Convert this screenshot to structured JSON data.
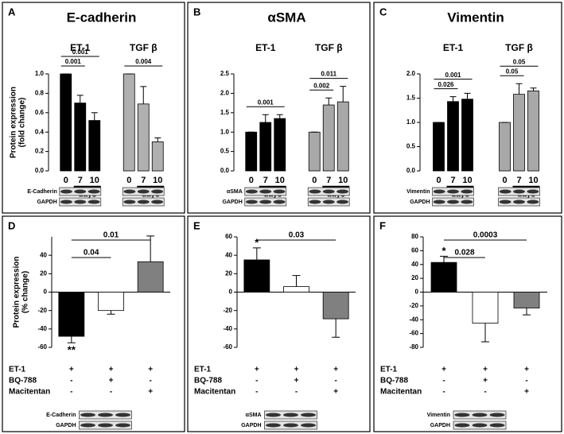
{
  "chart_data": [
    {
      "panel": "A",
      "type": "grouped-bar",
      "title": "E-cadherin",
      "y_label": [
        "Protein expression",
        "(fold change)"
      ],
      "ylim": [
        0,
        1
      ],
      "yticks": [
        {
          "value": 0,
          "label": "0.0"
        },
        0.2,
        0.4,
        0.6,
        0.8,
        {
          "value": 1,
          "label": "1.0"
        }
      ],
      "x_label": "days",
      "categories": [
        "0",
        "7",
        "10"
      ],
      "series": [
        {
          "name": "ET-1",
          "color": "#000000",
          "values": [
            1,
            0.7,
            0.52
          ],
          "errors": [
            0,
            0.08,
            0.08
          ]
        },
        {
          "name": "TGF β",
          "color": "#b0b0b0",
          "values": [
            1,
            0.69,
            0.3
          ],
          "errors": [
            0,
            0.18,
            0.04
          ]
        }
      ],
      "brackets": [
        {
          "label": "0.001",
          "series": 0,
          "from": 0,
          "to": 1
        },
        {
          "label": "0.001",
          "series": 0,
          "from": 0,
          "to": 2
        },
        {
          "label": "0.004",
          "series": 1,
          "from": 0,
          "to": 2
        }
      ],
      "blot_labels": [
        "E-Cadherin",
        "GAPDH"
      ]
    },
    {
      "panel": "B",
      "type": "grouped-bar",
      "title": "αSMA",
      "ylim": [
        0,
        2.5
      ],
      "yticks": [
        {
          "value": 0,
          "label": "0.0"
        },
        0.5,
        {
          "value": 1,
          "label": "1.0"
        },
        1.5,
        {
          "value": 2,
          "label": "2.0"
        },
        2.5
      ],
      "x_label": "days",
      "categories": [
        "0",
        "7",
        "10"
      ],
      "series": [
        {
          "name": "ET-1",
          "color": "#000000",
          "values": [
            1,
            1.25,
            1.35
          ],
          "errors": [
            0,
            0.2,
            0.1
          ]
        },
        {
          "name": "TGF β",
          "color": "#a8a8a8",
          "values": [
            1,
            1.7,
            1.78
          ],
          "errors": [
            0,
            0.18,
            0.4
          ]
        }
      ],
      "brackets": [
        {
          "label": "0.001",
          "series": 0,
          "from": 0,
          "to": 2
        },
        {
          "label": "0.002",
          "series": 1,
          "from": 0,
          "to": 1
        },
        {
          "label": "0.011",
          "series": 1,
          "from": 0,
          "to": 2
        }
      ],
      "blot_labels": [
        "αSMA",
        "GAPDH"
      ]
    },
    {
      "panel": "C",
      "type": "grouped-bar",
      "title": "Vimentin",
      "ylim": [
        0,
        2
      ],
      "yticks": [
        {
          "value": 0,
          "label": "0.0"
        },
        0.5,
        {
          "value": 1,
          "label": "1.0"
        },
        1.5,
        {
          "value": 2,
          "label": "2.0"
        }
      ],
      "x_label": "days",
      "categories": [
        "0",
        "7",
        "10"
      ],
      "series": [
        {
          "name": "ET-1",
          "color": "#000000",
          "values": [
            1,
            1.43,
            1.48
          ],
          "errors": [
            0,
            0.1,
            0.12
          ]
        },
        {
          "name": "TGF β",
          "color": "#a8a8a8",
          "values": [
            1,
            1.58,
            1.65
          ],
          "errors": [
            0,
            0.22,
            0.06
          ]
        }
      ],
      "brackets": [
        {
          "label": "0.026",
          "series": 0,
          "from": 0,
          "to": 1
        },
        {
          "label": "0.001",
          "series": 0,
          "from": 0,
          "to": 2
        },
        {
          "label": "0.05",
          "series": 1,
          "from": 0,
          "to": 1
        },
        {
          "label": "0.05",
          "series": 1,
          "from": 0,
          "to": 2
        }
      ],
      "blot_labels": [
        "Vimentin",
        "GAPDH"
      ]
    },
    {
      "panel": "D",
      "type": "bar",
      "y_label": [
        "Protein expression",
        "(% change)"
      ],
      "ylim": [
        -60,
        60
      ],
      "yticks": [
        -60,
        -40,
        -20,
        0,
        20,
        40
      ],
      "values": [
        -48,
        -20,
        33
      ],
      "errors": [
        7,
        4,
        28
      ],
      "colors": [
        "#000000",
        "#ffffff",
        "#808080"
      ],
      "brackets": [
        {
          "label": "0.01",
          "from": 0,
          "to": 2
        },
        {
          "label": "0.04",
          "from": 0,
          "to": 1
        }
      ],
      "significance": [
        {
          "label": "**",
          "bar": 0
        }
      ],
      "conditions": [
        {
          "name": "ET-1",
          "signs": [
            "+",
            "+",
            "+"
          ]
        },
        {
          "name": "BQ-788",
          "signs": [
            "-",
            "+",
            "-"
          ]
        },
        {
          "name": "Macitentan",
          "signs": [
            "-",
            "-",
            "+"
          ]
        }
      ],
      "blot_labels": [
        "E-Cadherin",
        "GAPDH"
      ]
    },
    {
      "panel": "E",
      "type": "bar",
      "ylim": [
        -60,
        60
      ],
      "yticks": [
        -60,
        -40,
        -20,
        0,
        20,
        40,
        60
      ],
      "values": [
        35,
        6,
        -29
      ],
      "errors": [
        13,
        12,
        20
      ],
      "colors": [
        "#000000",
        "#ffffff",
        "#808080"
      ],
      "brackets": [
        {
          "label": "0.03",
          "from": 0,
          "to": 2
        }
      ],
      "significance": [
        {
          "label": "*",
          "bar": 0
        }
      ],
      "conditions": [
        {
          "name": "ET-1",
          "signs": [
            "+",
            "+",
            "+"
          ]
        },
        {
          "name": "BQ-788",
          "signs": [
            "-",
            "+",
            "-"
          ]
        },
        {
          "name": "Macitentan",
          "signs": [
            "-",
            "-",
            "+"
          ]
        }
      ],
      "blot_labels": [
        "αSMA",
        "GAPDH"
      ]
    },
    {
      "panel": "F",
      "type": "bar",
      "ylim": [
        -80,
        80
      ],
      "yticks": [
        -80,
        -60,
        -40,
        -20,
        0,
        20,
        40,
        60,
        80
      ],
      "values": [
        43,
        -45,
        -23
      ],
      "errors": [
        9,
        27,
        10
      ],
      "colors": [
        "#000000",
        "#ffffff",
        "#808080"
      ],
      "brackets": [
        {
          "label": "0.0003",
          "from": 0,
          "to": 2
        },
        {
          "label": "0.028",
          "from": 0,
          "to": 1
        }
      ],
      "significance": [
        {
          "label": "*",
          "bar": 0
        }
      ],
      "conditions": [
        {
          "name": "ET-1",
          "signs": [
            "+",
            "+",
            "+"
          ]
        },
        {
          "name": "BQ-788",
          "signs": [
            "-",
            "+",
            "-"
          ]
        },
        {
          "name": "Macitentan",
          "signs": [
            "-",
            "-",
            "+"
          ]
        }
      ],
      "blot_labels": [
        "Vimentin",
        "GAPDH"
      ]
    }
  ]
}
